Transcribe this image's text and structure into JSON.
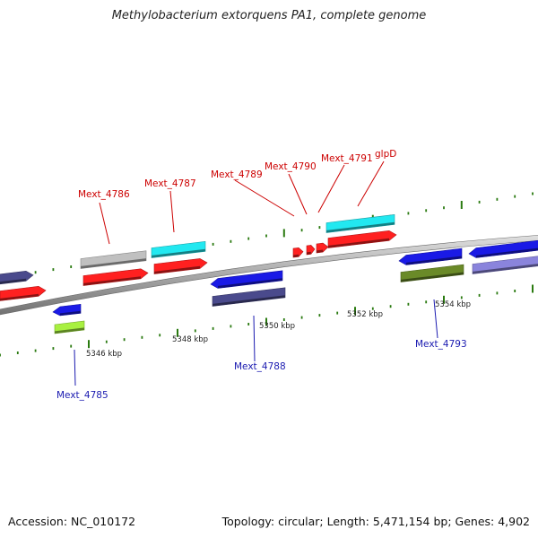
{
  "title": "Methylobacterium extorquens PA1, complete genome",
  "footer": {
    "accession": "Accession: NC_010172",
    "topology": "Topology: circular; Length: 5,471,154 bp; Genes: 4,902"
  },
  "colors": {
    "backbone": "#8a8a8a",
    "tick": "#2a7a10",
    "label_forward": "#cc0000",
    "label_reverse": "#1a1ab0",
    "red": "#ff2020",
    "cyan": "#22e8f0",
    "gray": "#c0c0c0",
    "blue": "#1a1ae6",
    "slate": "#4a4a8c",
    "lavender": "#8a84dc",
    "olive": "#6a8a28",
    "lime": "#a8f040"
  },
  "scale_labels": [
    "5346 kbp",
    "5348 kbp",
    "5350 kbp",
    "5352 kbp",
    "5354 kbp"
  ],
  "gene_labels": [
    {
      "id": "mext4785",
      "text": "Mext_4785",
      "strand": "reverse"
    },
    {
      "id": "mext4786",
      "text": "Mext_4786",
      "strand": "forward"
    },
    {
      "id": "mext4787",
      "text": "Mext_4787",
      "strand": "forward"
    },
    {
      "id": "mext4788",
      "text": "Mext_4788",
      "strand": "reverse"
    },
    {
      "id": "mext4789",
      "text": "Mext_4789",
      "strand": "forward"
    },
    {
      "id": "mext4790",
      "text": "Mext_4790",
      "strand": "forward"
    },
    {
      "id": "mext4791",
      "text": "Mext_4791",
      "strand": "forward"
    },
    {
      "id": "glpd",
      "text": "glpD",
      "strand": "forward"
    },
    {
      "id": "mext4793",
      "text": "Mext_4793",
      "strand": "reverse"
    }
  ]
}
